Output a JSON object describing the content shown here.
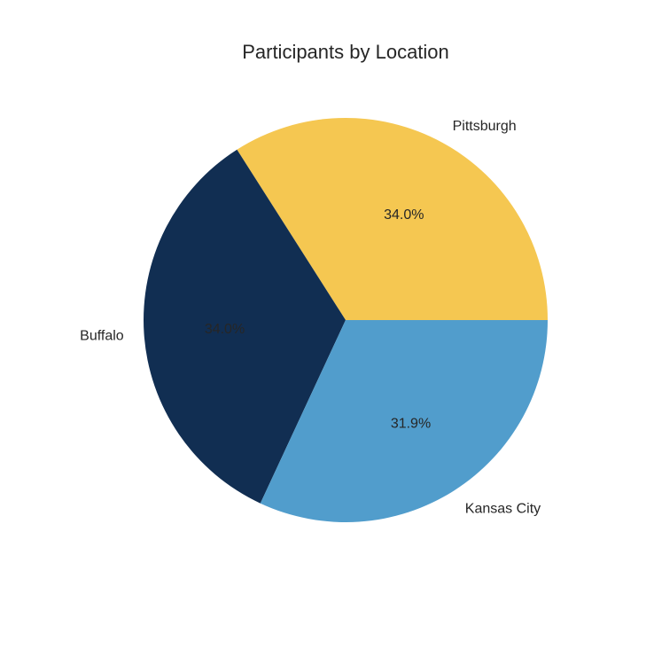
{
  "chart_data": {
    "type": "pie",
    "title": "Participants by Location",
    "categories": [
      "Pittsburgh",
      "Buffalo",
      "Kansas City"
    ],
    "values": [
      34.0,
      34.0,
      31.9
    ],
    "percent_labels": [
      "34.0%",
      "34.0%",
      "31.9%"
    ],
    "colors": [
      "#F5C751",
      "#112E52",
      "#519DCC"
    ],
    "start_angle_deg": 0,
    "direction": "counterclockwise",
    "legend": "none"
  }
}
